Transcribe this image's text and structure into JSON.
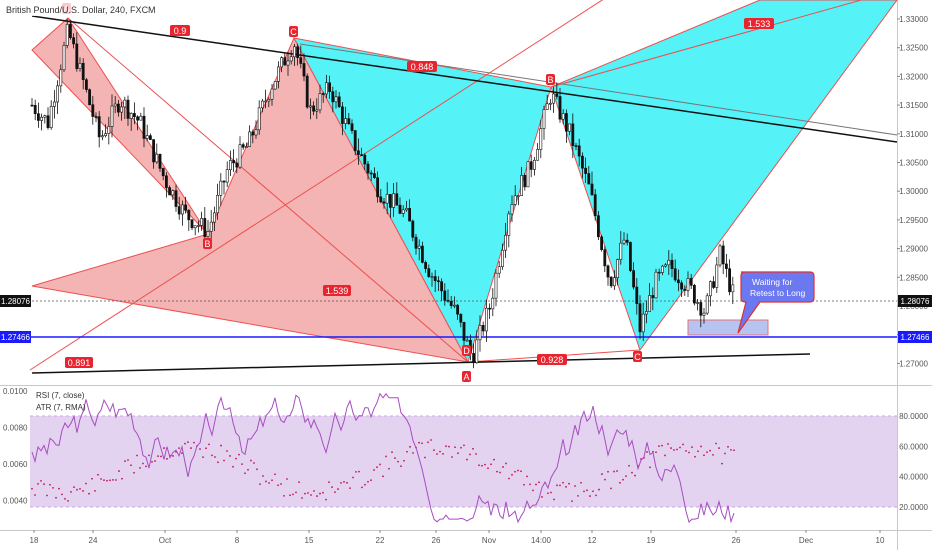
{
  "chart_title": "British Pound/U.S. Dollar, 240, FXCM",
  "price_axis": {
    "ticks": [
      "1.33000",
      "1.32500",
      "1.32000",
      "1.31500",
      "1.31000",
      "1.30500",
      "1.30000",
      "1.29500",
      "1.29000",
      "1.28500",
      "1.28000",
      "1.27500",
      "1.27000"
    ],
    "current_price_label": "1.28076",
    "line_price_label": "1.27466"
  },
  "indicator_axis": {
    "left_ticks": [
      "0.0100",
      "0.0080",
      "0.0060",
      "0.0040"
    ],
    "right_ticks": [
      "80.0000",
      "60.0000",
      "40.0000",
      "20.0000"
    ]
  },
  "time_axis": [
    "18",
    "24",
    "Oct",
    "8",
    "15",
    "22",
    "26",
    "Nov",
    "14:00",
    "12",
    "19",
    "26",
    "Dec",
    "10"
  ],
  "indicator_labels": {
    "rsi": "RSI (7, close)",
    "atr": "ATR (7, RMA)"
  },
  "pattern_labels": {
    "pointA1": "A",
    "pointB1": "B",
    "pointC1": "C",
    "pointD1": "D",
    "pointA2": "A",
    "pointB2": "B",
    "pointC2": "C",
    "ratio1": "0.9",
    "ratio2": "1.539",
    "ratio3": "0.891",
    "ratio4": "0.848",
    "ratio5": "1.533",
    "ratio6": "0.928"
  },
  "annotation": {
    "line1": "Waiting for",
    "line2": "Retest to Long"
  },
  "colors": {
    "bear_pattern_fill": "#f4b4b4",
    "bull_pattern_fill": "#55f2f7",
    "pattern_outline": "#ee4f4f",
    "blue_line": "#1a1aff",
    "rsi_line": "#a64dbf",
    "rsi_band": "#e4d3f0",
    "annotation_fill": "#6b78f0"
  },
  "chart_data": {
    "type": "line",
    "title": "British Pound/U.S. Dollar, 240, FXCM",
    "price_range": [
      1.268,
      1.332
    ],
    "series": [
      {
        "name": "British Pound/U.S. Dollar",
        "x": [
          "18",
          "24",
          "Oct",
          "8",
          "15",
          "22",
          "26",
          "Nov",
          "14:00",
          "12",
          "19",
          "26"
        ],
        "values": [
          1.315,
          1.328,
          1.31,
          1.294,
          1.326,
          1.29,
          1.272,
          1.317,
          1.298,
          1.275,
          1.286,
          1.281
        ]
      }
    ],
    "horizontal_levels": [
      1.28076,
      1.27466
    ],
    "rsi_range": [
      0,
      100
    ],
    "rsi_band": [
      20,
      80
    ],
    "atr_range": [
      0.003,
      0.01
    ]
  }
}
